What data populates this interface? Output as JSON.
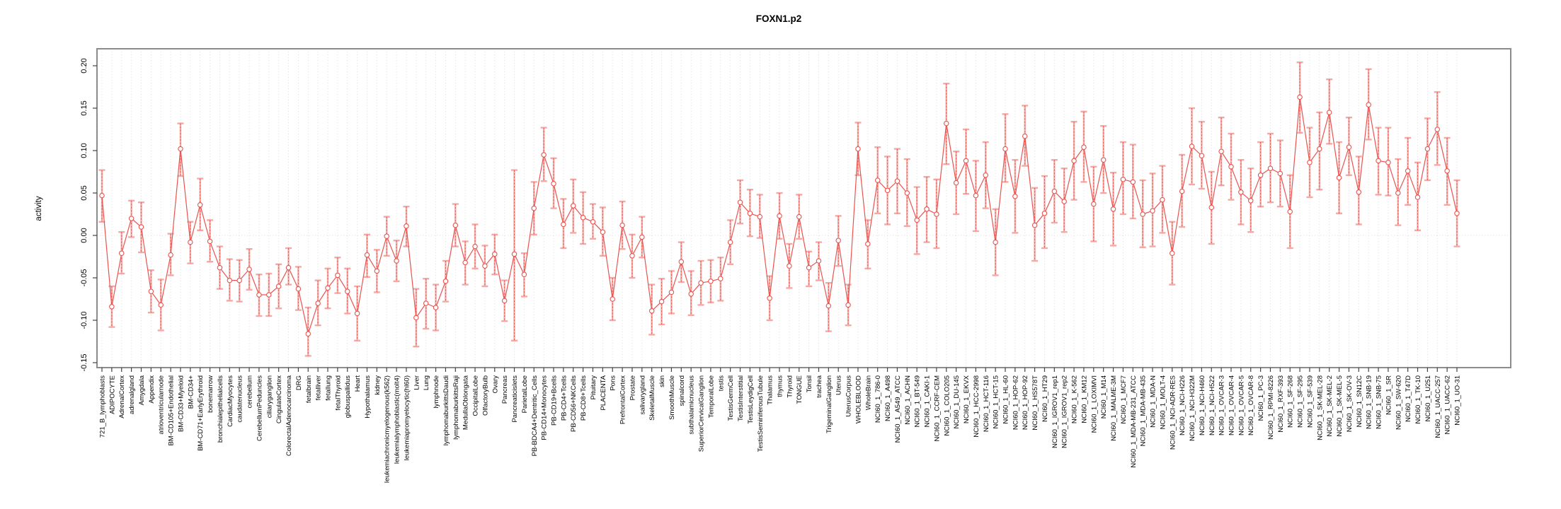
{
  "title": "FOXN1.p2",
  "chart_data": {
    "type": "line",
    "title": "FOXN1.p2",
    "xlabel": "",
    "ylabel": "activity",
    "ylim": [
      -0.15,
      0.2
    ],
    "ytick_labels": [
      "0.20",
      "0.15",
      "0.10",
      "0.05",
      "0.00",
      "-0.05",
      "-0.10",
      "-0.15"
    ],
    "yticks": [
      0.2,
      0.15,
      0.1,
      0.05,
      0.0,
      -0.05,
      -0.1,
      -0.15
    ],
    "grid": "vertical dotted gridline at every category; horizontal dotted line at y=0; no legend",
    "legend_position": "none",
    "marker": "open-circle",
    "series_color": "#e9534f",
    "errorbar_color": "#f5a9a5",
    "grid_color": "#dcdcdc",
    "box_color": "#8c8c8c",
    "categories": [
      "721_B_lymphoblasts",
      "ADIPOCYTE",
      "AdrenalCortex",
      "adrenalgland",
      "Amygdala",
      "Appendix",
      "atrioventricularnode",
      "BM-CD105+Endothelial",
      "BM-CD33+Myeloid",
      "BM-CD34+",
      "BM-CD71+EarlyErythroid",
      "bonemarrow",
      "bronchialepithelialcells",
      "CardiacMyocytes",
      "caudatenucleus",
      "cerebellum",
      "CerebellumPeduncles",
      "ciliaryganglion",
      "CingulateCortex",
      "ColorectalAdenocarcinoma",
      "DRG",
      "fetalbrain",
      "fetalliver",
      "fetallung",
      "fetalThyroid",
      "globuspallidus",
      "Heart",
      "Hypothalamus",
      "kidney",
      "leukemiachronicmyelogenous(k562)",
      "leukemialymphoblastic(molt4)",
      "leukemiapromyelocytic(hl60)",
      "Liver",
      "Lung",
      "lymphnode",
      "lymphomaburkittsDaudi",
      "lymphomaburkittsRaji",
      "MedullaOblongata",
      "OccipitalLobe",
      "OlfactoryBulb",
      "Ovary",
      "Pancreas",
      "Pancreaticislets",
      "ParietalLobe",
      "PB-BDCA4+Dentritic_Cells",
      "PB-CD14+Monocytes",
      "PB-CD19+Bcells",
      "PB-CD4+Tcells",
      "PB-CD56+NKCells",
      "PB-CD8+Tcells",
      "Pituitary",
      "PLACENTA",
      "Pons",
      "PrefrontalCortex",
      "Prostate",
      "salivarygland",
      "SkeletalMuscle",
      "skin",
      "SmoothMuscle",
      "spinalcord",
      "subthalamicnucleus",
      "SuperiorCervicalGanglion",
      "TemporalLobe",
      "testis",
      "TestisGermCell",
      "TestisInterstitial",
      "TestisLeydigCell",
      "TestisSeminiferousTubule",
      "Thalamus",
      "thymus",
      "Thyroid",
      "TONGUE",
      "Tonsil",
      "trachea",
      "TrigeminalGanglion",
      "Uterus",
      "UterusCorpus",
      "WHOLEBLOOD",
      "WholeBrain",
      "NCI60_1_786-0",
      "NCI60_1_A498",
      "NCI60_1_A549_ATCC",
      "NCI60_1_ACHN",
      "NCI60_1_BT-549",
      "NCI60_1_CAKI-1",
      "NCI60_1_CCRF-CEM",
      "NCI60_1_COLO205",
      "NCI60_1_DU-145",
      "NCI60_1_EKVX",
      "NCI60_1_HCC-2998",
      "NCI60_1_HCT-116",
      "NCI60_1_HCT-15",
      "NCI60_1_HL-60",
      "NCI60_1_HOP-62",
      "NCI60_1_HOP-92",
      "NCI60_1_HS578T",
      "NCI60_1_HT29",
      "NCI60_1_IGROV1_rep1",
      "NCI60_1_IGROV1_rep2",
      "NCI60_1_K-562",
      "NCI60_1_KM12",
      "NCI60_1_LOXIMVI",
      "NCI60_1_M14",
      "NCI60_1_MALME-3M",
      "NCI60_1_MCF7",
      "NCI60_1_MDA-MB-231_ATCC",
      "NCI60_1_MDA-MB-435",
      "NCI60_1_MDA-N",
      "NCI60_1_MOLT-4",
      "NCI60_1_NCI-ADR-RES",
      "NCI60_1_NCI-H226",
      "NCI60_1_NCI-H322M",
      "NCI60_1_NCI-H460",
      "NCI60_1_NCI-H522",
      "NCI60_1_OVCAR-3",
      "NCI60_1_OVCAR-4",
      "NCI60_1_OVCAR-5",
      "NCI60_1_OVCAR-8",
      "NCI60_1_PC-3",
      "NCI60_1_RPMI-8226",
      "NCI60_1_RXF-393",
      "NCI60_1_SF-268",
      "NCI60_1_SF-295",
      "NCI60_1_SF-539",
      "NCI60_1_SK-MEL-28",
      "NCI60_1_SK-MEL-2",
      "NCI60_1_SK-MEL-5",
      "NCI60_1_SK-OV-3",
      "NCI60_1_SN12C",
      "NCI60_1_SNB-19",
      "NCI60_1_SNB-75",
      "NCI60_1_SR",
      "NCI60_1_SW-620",
      "NCI60_1_T47D",
      "NCI60_1_TK-10",
      "NCI60_1_U251",
      "NCI60_1_UACC-257",
      "NCI60_1_UACC-62",
      "NCI60_1_UO-31"
    ],
    "values": [
      0.047,
      -0.084,
      -0.021,
      0.02,
      0.01,
      -0.066,
      -0.082,
      -0.023,
      0.102,
      -0.008,
      0.036,
      -0.007,
      -0.038,
      -0.053,
      -0.053,
      -0.04,
      -0.07,
      -0.07,
      -0.06,
      -0.038,
      -0.063,
      -0.116,
      -0.08,
      -0.062,
      -0.047,
      -0.066,
      -0.092,
      -0.023,
      -0.042,
      -0.001,
      -0.03,
      0.011,
      -0.097,
      -0.08,
      -0.085,
      -0.054,
      0.012,
      -0.032,
      -0.013,
      -0.036,
      -0.022,
      -0.077,
      -0.022,
      -0.046,
      0.032,
      0.095,
      0.061,
      0.013,
      0.035,
      0.021,
      0.016,
      0.004,
      -0.075,
      0.012,
      -0.024,
      -0.002,
      -0.089,
      -0.078,
      -0.067,
      -0.031,
      -0.069,
      -0.056,
      -0.054,
      -0.051,
      -0.008,
      0.039,
      0.026,
      0.022,
      -0.074,
      0.023,
      -0.036,
      0.022,
      -0.038,
      -0.03,
      -0.083,
      -0.006,
      -0.082,
      0.102,
      -0.01,
      0.065,
      0.053,
      0.064,
      0.05,
      0.018,
      0.031,
      0.025,
      0.132,
      0.062,
      0.088,
      0.047,
      0.071,
      -0.008,
      0.102,
      0.046,
      0.117,
      0.012,
      0.026,
      0.052,
      0.04,
      0.088,
      0.104,
      0.037,
      0.089,
      0.031,
      0.066,
      0.063,
      0.025,
      0.029,
      0.042,
      -0.021,
      0.052,
      0.105,
      0.094,
      0.033,
      0.099,
      0.081,
      0.051,
      0.041,
      0.071,
      0.079,
      0.073,
      0.028,
      0.163,
      0.086,
      0.102,
      0.145,
      0.068,
      0.104,
      0.051,
      0.154,
      0.088,
      0.086,
      0.05,
      0.076,
      0.045,
      0.102,
      0.125,
      0.076,
      0.026
    ],
    "error_high": [
      0.077,
      -0.06,
      0.004,
      0.041,
      0.039,
      -0.041,
      -0.052,
      0.002,
      0.132,
      0.016,
      0.067,
      0.018,
      -0.013,
      -0.028,
      -0.029,
      -0.016,
      -0.046,
      -0.045,
      -0.034,
      -0.015,
      -0.037,
      -0.085,
      -0.053,
      -0.039,
      -0.026,
      -0.039,
      -0.06,
      0.001,
      -0.017,
      0.022,
      -0.006,
      0.034,
      -0.063,
      -0.051,
      -0.058,
      -0.03,
      0.037,
      -0.007,
      0.013,
      -0.012,
      0.001,
      -0.053,
      0.077,
      -0.021,
      0.063,
      0.127,
      0.091,
      0.043,
      0.066,
      0.051,
      0.037,
      0.033,
      -0.05,
      0.04,
      0.001,
      0.022,
      -0.058,
      -0.051,
      -0.042,
      -0.008,
      -0.042,
      -0.03,
      -0.029,
      -0.026,
      0.018,
      0.065,
      0.054,
      0.048,
      -0.048,
      0.05,
      -0.01,
      0.048,
      -0.019,
      -0.008,
      -0.056,
      0.023,
      -0.058,
      0.133,
      0.018,
      0.104,
      0.093,
      0.102,
      0.09,
      0.057,
      0.069,
      0.066,
      0.179,
      0.099,
      0.125,
      0.088,
      0.11,
      0.031,
      0.143,
      0.089,
      0.153,
      0.056,
      0.07,
      0.089,
      0.079,
      0.134,
      0.146,
      0.081,
      0.129,
      0.074,
      0.11,
      0.107,
      0.065,
      0.073,
      0.082,
      0.016,
      0.095,
      0.15,
      0.134,
      0.075,
      0.139,
      0.12,
      0.089,
      0.079,
      0.11,
      0.12,
      0.112,
      0.071,
      0.204,
      0.127,
      0.145,
      0.184,
      0.11,
      0.139,
      0.093,
      0.196,
      0.127,
      0.127,
      0.09,
      0.115,
      0.086,
      0.138,
      0.169,
      0.115,
      0.065
    ],
    "error_low": [
      0.016,
      -0.108,
      -0.045,
      -0.002,
      -0.02,
      -0.091,
      -0.112,
      -0.047,
      0.07,
      -0.033,
      0.006,
      -0.031,
      -0.063,
      -0.077,
      -0.078,
      -0.064,
      -0.095,
      -0.095,
      -0.086,
      -0.058,
      -0.088,
      -0.142,
      -0.106,
      -0.086,
      -0.068,
      -0.092,
      -0.124,
      -0.049,
      -0.067,
      -0.024,
      -0.054,
      -0.013,
      -0.131,
      -0.11,
      -0.112,
      -0.078,
      -0.013,
      -0.058,
      -0.039,
      -0.06,
      -0.046,
      -0.101,
      -0.124,
      -0.072,
      0.001,
      0.064,
      0.032,
      -0.015,
      0.003,
      -0.01,
      -0.004,
      -0.024,
      -0.1,
      -0.016,
      -0.05,
      -0.026,
      -0.117,
      -0.105,
      -0.092,
      -0.055,
      -0.094,
      -0.082,
      -0.079,
      -0.077,
      -0.034,
      0.014,
      -0.001,
      -0.003,
      -0.1,
      -0.004,
      -0.062,
      -0.004,
      -0.06,
      -0.053,
      -0.113,
      -0.036,
      -0.106,
      0.071,
      -0.039,
      0.026,
      0.013,
      0.026,
      0.011,
      -0.022,
      -0.008,
      -0.015,
      0.084,
      0.025,
      0.049,
      0.005,
      0.032,
      -0.047,
      0.063,
      0.003,
      0.082,
      -0.03,
      -0.015,
      0.015,
      0.004,
      0.042,
      0.063,
      -0.007,
      0.05,
      -0.012,
      0.025,
      0.02,
      -0.014,
      -0.013,
      0.003,
      -0.058,
      0.01,
      0.06,
      0.055,
      -0.01,
      0.059,
      0.042,
      0.013,
      0.004,
      0.034,
      0.039,
      0.034,
      -0.015,
      0.121,
      0.045,
      0.054,
      0.108,
      0.026,
      0.071,
      0.013,
      0.113,
      0.048,
      0.047,
      0.012,
      0.036,
      0.006,
      0.065,
      0.083,
      0.036,
      -0.013
    ]
  }
}
